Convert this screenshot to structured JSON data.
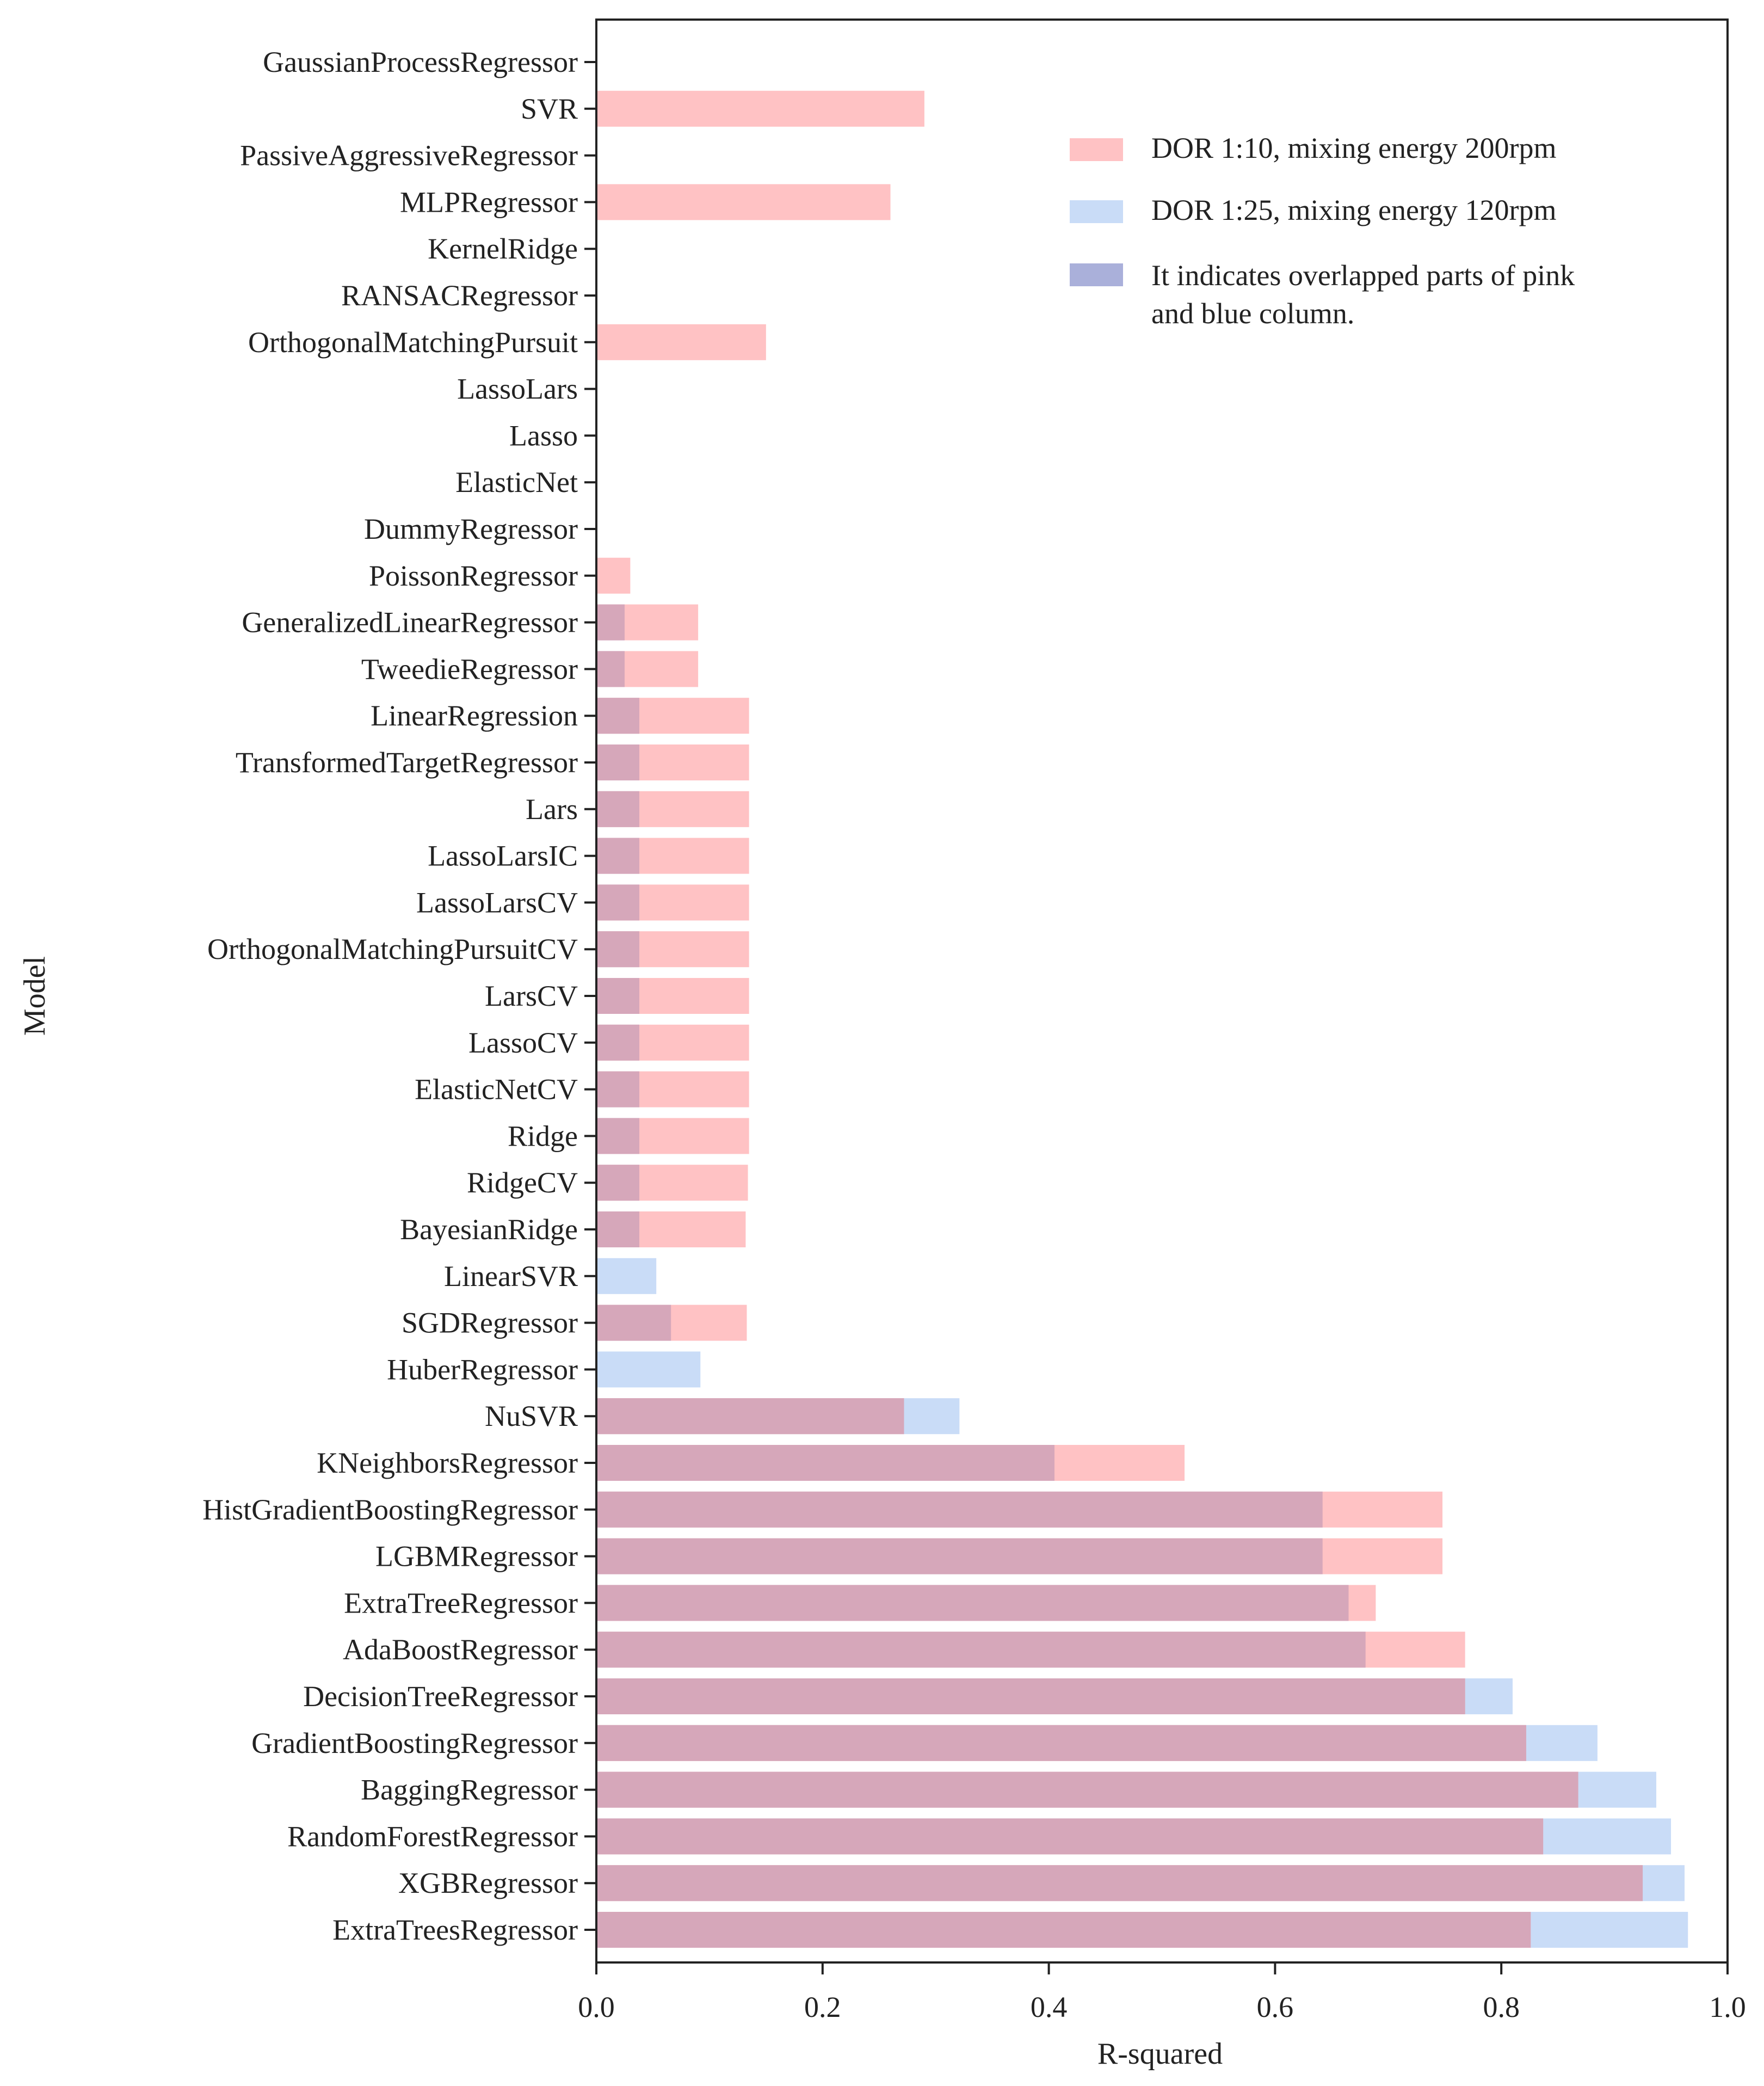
{
  "chart_data": {
    "type": "bar",
    "orientation": "horizontal",
    "title": "",
    "xlabel": "R-squared",
    "ylabel": "Model",
    "xlim": [
      0.0,
      1.0
    ],
    "xticks": [
      "0.0",
      "0.2",
      "0.4",
      "0.6",
      "0.8",
      "1.0"
    ],
    "grid": false,
    "legend_position": "top-right",
    "categories": [
      "GaussianProcessRegressor",
      "SVR",
      "PassiveAggressiveRegressor",
      "MLPRegressor",
      "KernelRidge",
      "RANSACRegressor",
      "OrthogonalMatchingPursuit",
      "LassoLars",
      "Lasso",
      "ElasticNet",
      "DummyRegressor",
      "PoissonRegressor",
      "GeneralizedLinearRegressor",
      "TweedieRegressor",
      "LinearRegression",
      "TransformedTargetRegressor",
      "Lars",
      "LassoLarsIC",
      "LassoLarsCV",
      "OrthogonalMatchingPursuitCV",
      "LarsCV",
      "LassoCV",
      "ElasticNetCV",
      "Ridge",
      "RidgeCV",
      "BayesianRidge",
      "LinearSVR",
      "SGDRegressor",
      "HuberRegressor",
      "NuSVR",
      "KNeighborsRegressor",
      "HistGradientBoostingRegressor",
      "LGBMRegressor",
      "ExtraTreeRegressor",
      "AdaBoostRegressor",
      "DecisionTreeRegressor",
      "GradientBoostingRegressor",
      "BaggingRegressor",
      "RandomForestRegressor",
      "XGBRegressor",
      "ExtraTreesRegressor"
    ],
    "series": [
      {
        "name": "DOR 1:10, mixing energy 200rpm",
        "color": "#ffc2c4",
        "values": [
          0,
          0.29,
          0,
          0.26,
          0,
          0,
          0.15,
          0,
          0,
          0,
          0,
          0.03,
          0.09,
          0.09,
          0.135,
          0.135,
          0.135,
          0.135,
          0.135,
          0.135,
          0.135,
          0.135,
          0.135,
          0.135,
          0.134,
          0.132,
          0,
          0.133,
          0,
          0.272,
          0.52,
          0.748,
          0.748,
          0.689,
          0.768,
          0.768,
          0.822,
          0.868,
          0.837,
          0.925,
          0.826
        ]
      },
      {
        "name": "DOR 1:25, mixing energy 120rpm",
        "color": "#c9dcf7",
        "values": [
          0,
          0,
          0,
          0,
          0,
          0,
          0,
          0,
          0,
          0,
          0,
          0,
          0.025,
          0.025,
          0.038,
          0.038,
          0.038,
          0.038,
          0.038,
          0.038,
          0.038,
          0.038,
          0.038,
          0.038,
          0.038,
          0.038,
          0.053,
          0.066,
          0.092,
          0.321,
          0.405,
          0.642,
          0.642,
          0.665,
          0.68,
          0.81,
          0.885,
          0.937,
          0.95,
          0.962,
          0.965
        ]
      }
    ],
    "overlap_color": "#d6a7ba",
    "legend": [
      {
        "label": "DOR 1:10, mixing energy 200rpm",
        "color": "#ffc2c4"
      },
      {
        "label": "DOR 1:25, mixing energy 120rpm",
        "color": "#c9dcf7"
      },
      {
        "label_line1": "It indicates overlapped parts of pink",
        "label_line2": "and blue column.",
        "color": "#aab0da"
      }
    ]
  }
}
